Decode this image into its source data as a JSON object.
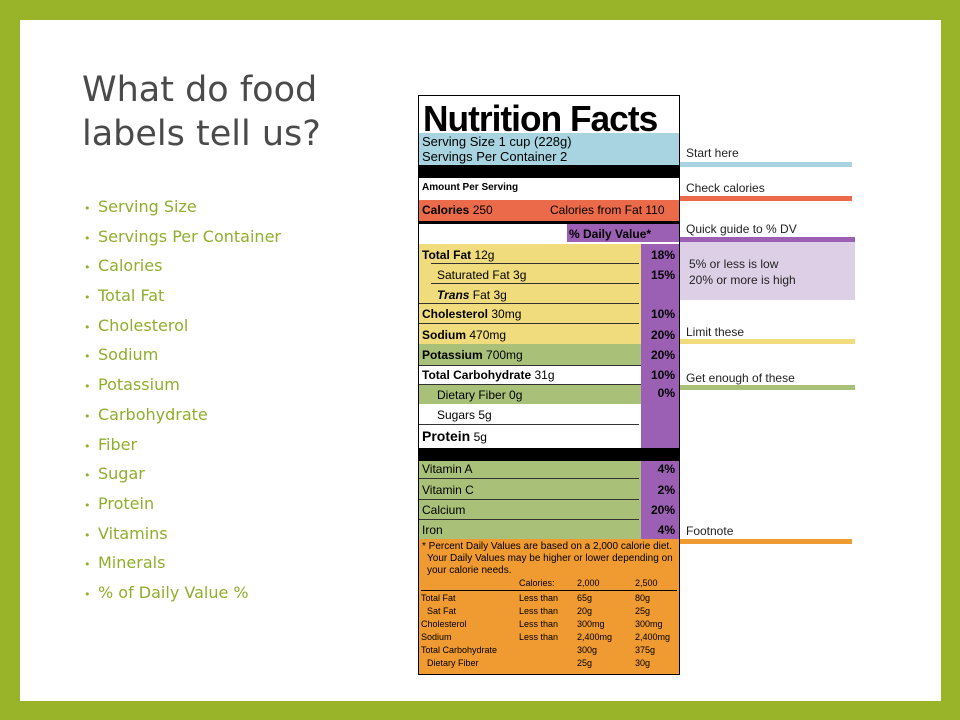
{
  "slide": {
    "title": "What do food labels tell us?",
    "bullets": [
      "Serving Size",
      "Servings Per Container",
      "Calories",
      "Total Fat",
      "Cholesterol",
      "Sodium",
      "Potassium",
      "Carbohydrate",
      "Fiber",
      "Sugar",
      "Protein",
      "Vitamins",
      "Minerals",
      "% of Daily Value %"
    ],
    "bullet_symbol": "•"
  },
  "label": {
    "title": "Nutrition Facts",
    "serving_size": "Serving Size 1 cup (228g)",
    "servings_per_container": "Servings Per Container  2",
    "amount_per_serving": "Amount Per Serving",
    "calories_label": "Calories",
    "calories_value": "250",
    "calories_from_fat": "Calories from Fat 110",
    "daily_value_header": "% Daily Value*",
    "total_fat": "Total Fat",
    "total_fat_amt": "12g",
    "total_fat_pct": "18%",
    "sat_fat": "Saturated Fat 3g",
    "sat_fat_pct": "15%",
    "trans_fat_italic": "Trans",
    "trans_fat_rest": " Fat 3g",
    "cholesterol": "Cholesterol",
    "cholesterol_amt": "30mg",
    "cholesterol_pct": "10%",
    "sodium": "Sodium",
    "sodium_amt": "470mg",
    "sodium_pct": "20%",
    "potassium": "Potassium",
    "potassium_amt": "700mg",
    "potassium_pct": "20%",
    "total_carb": "Total Carbohydrate",
    "total_carb_amt": "31g",
    "total_carb_pct": "10%",
    "fiber": "Dietary Fiber 0g",
    "fiber_pct": "0%",
    "sugars": "Sugars 5g",
    "protein": "Protein",
    "protein_amt": "5g",
    "vitamin_a": "Vitamin A",
    "vitamin_a_pct": "4%",
    "vitamin_c": "Vitamin C",
    "vitamin_c_pct": "2%",
    "calcium": "Calcium",
    "calcium_pct": "20%",
    "iron": "Iron",
    "iron_pct": "4%",
    "footnote_1": "* Percent Daily Values are based on a 2,000 calorie diet.",
    "footnote_2": "Your Daily Values may be higher or lower depending on",
    "footnote_3": "your calorie needs.",
    "table_header_calories": "Calories:",
    "table_header_2000": "2,000",
    "table_header_2500": "2,500",
    "table_rows": [
      {
        "name": "Total Fat",
        "qual": "Less than",
        "a": "65g",
        "b": "80g"
      },
      {
        "name": "Sat Fat",
        "qual": "Less than",
        "a": "20g",
        "b": "25g"
      },
      {
        "name": "Cholesterol",
        "qual": "Less than",
        "a": "300mg",
        "b": "300mg"
      },
      {
        "name": "Sodium",
        "qual": "Less than",
        "a": "2,400mg",
        "b": "2,400mg"
      },
      {
        "name": "Total Carbohydrate",
        "qual": "",
        "a": "300g",
        "b": "375g"
      },
      {
        "name": "Dietary Fiber",
        "qual": "",
        "a": "25g",
        "b": "30g"
      }
    ]
  },
  "callouts": {
    "start_here": "Start here",
    "check_calories": "Check calories",
    "quick_guide": "Quick guide to % DV",
    "low_note": "5% or less is low",
    "high_note": "20% or more is high",
    "limit_these": "Limit these",
    "get_enough": "Get enough of these",
    "footnote": "Footnote"
  },
  "colors": {
    "border": "#9ab42a",
    "bullet_text": "#8fae2c",
    "blue": "#a7d4e0",
    "red": "#ea6a4a",
    "purple": "#9b5fb3",
    "light_purple": "#dccfe6",
    "yellow": "#f0dc7c",
    "green": "#a9c078",
    "orange": "#f09a32"
  }
}
